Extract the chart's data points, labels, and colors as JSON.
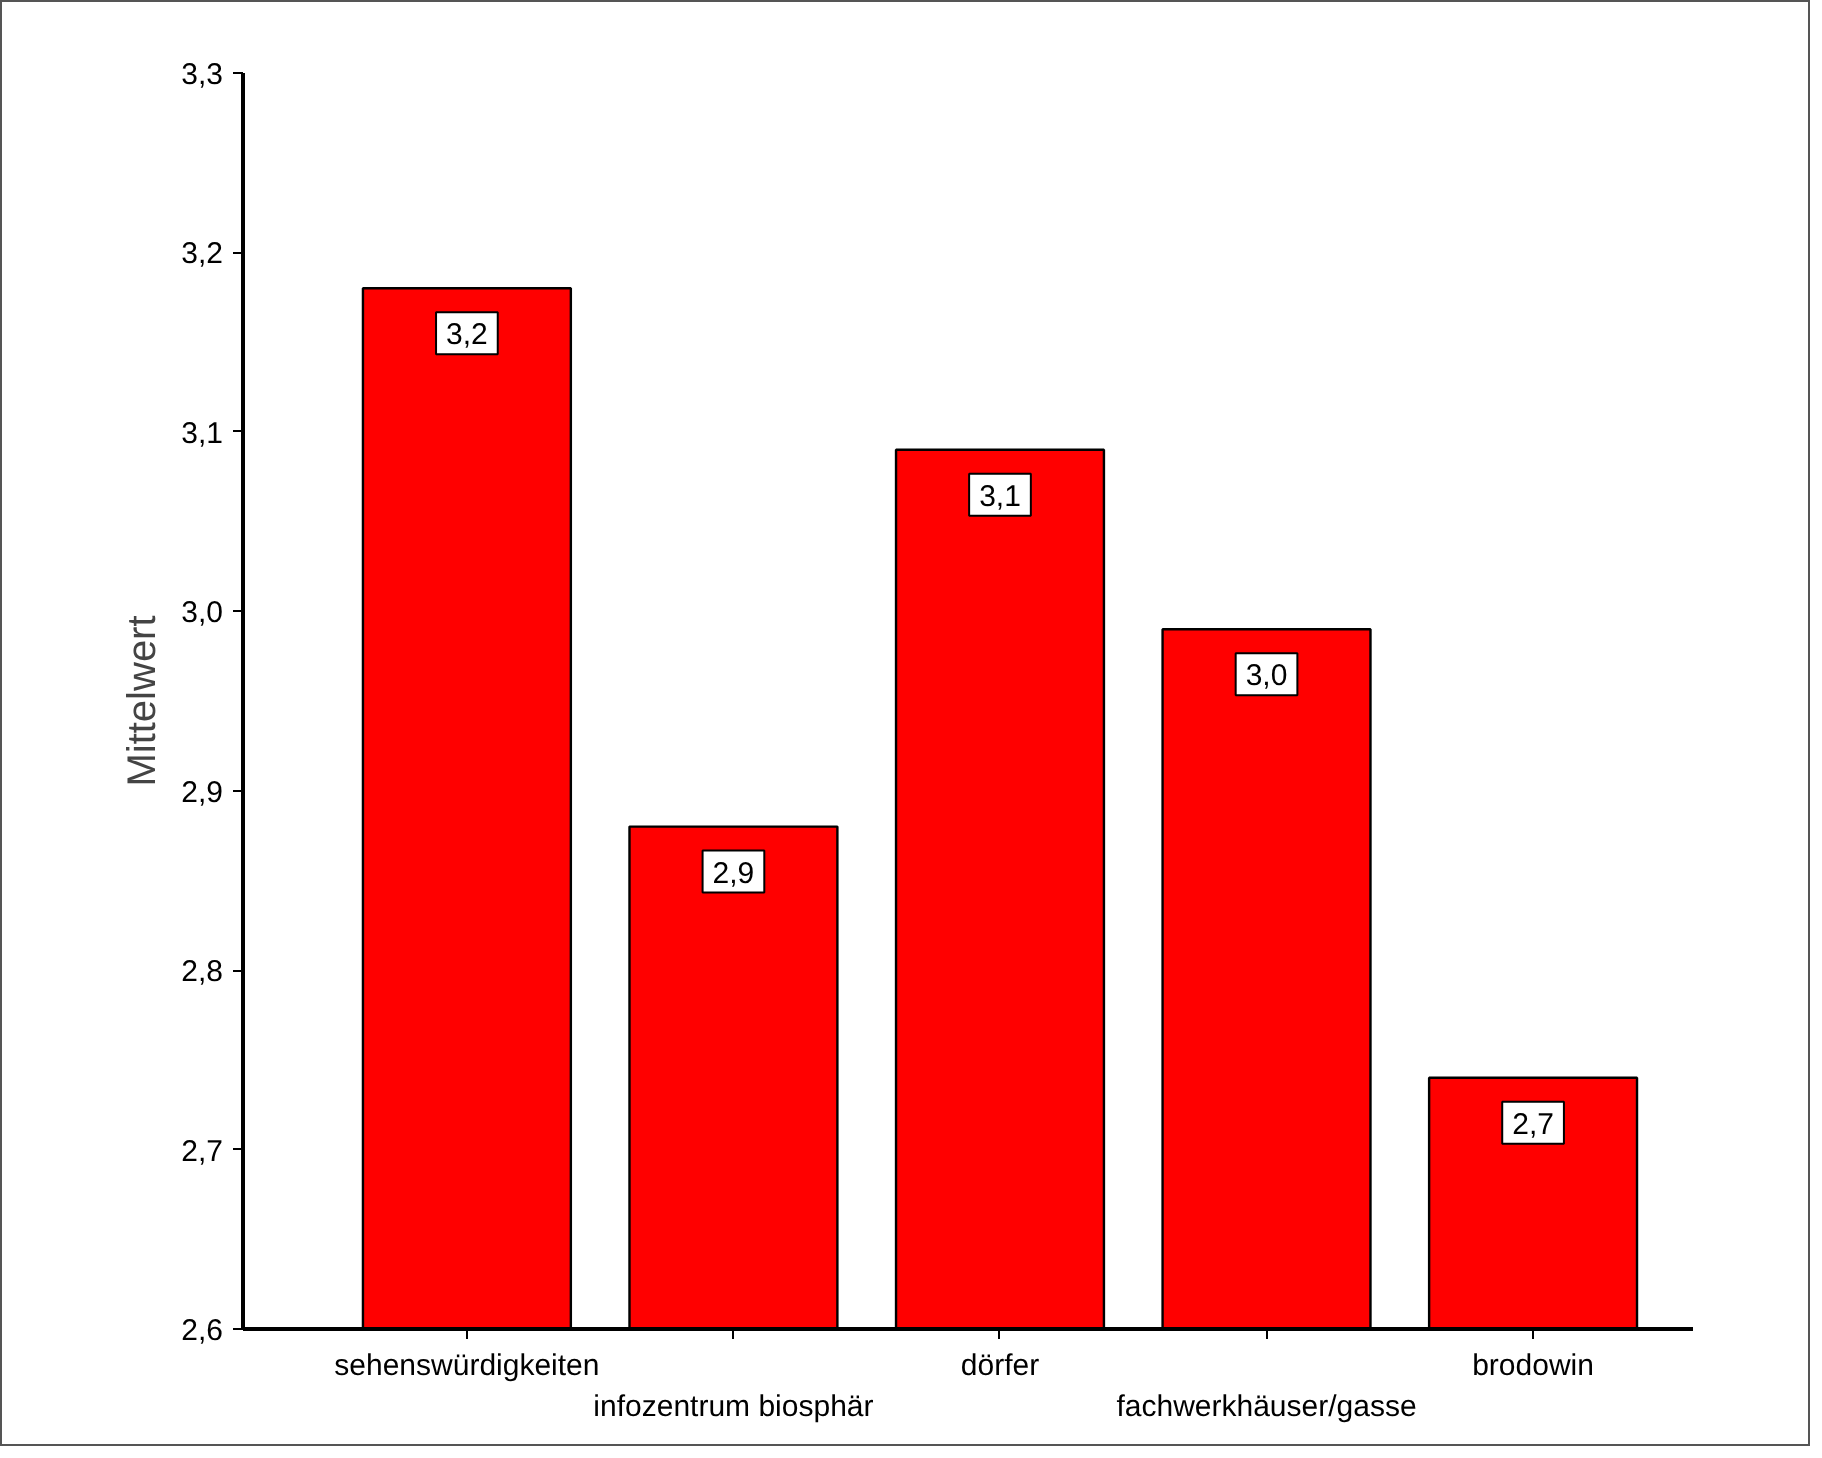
{
  "chart_data": {
    "type": "bar",
    "ylabel": "Mittelwert",
    "categories": [
      "sehenswürdigkeiten",
      "infozentrum biosphär",
      "dörfer",
      "fachwerkhäuser/gasse",
      "brodowin"
    ],
    "values": [
      3.18,
      2.88,
      3.09,
      2.99,
      2.74
    ],
    "value_labels": [
      "3,2",
      "2,9",
      "3,1",
      "3,0",
      "2,7"
    ],
    "color": "#ff0000",
    "ylim": [
      2.6,
      3.3
    ],
    "yticks": [
      {
        "value": 2.6,
        "label": "2,6"
      },
      {
        "value": 2.7,
        "label": "2,7"
      },
      {
        "value": 2.8,
        "label": "2,8"
      },
      {
        "value": 2.9,
        "label": "2,9"
      },
      {
        "value": 3.0,
        "label": "3,0"
      },
      {
        "value": 3.1,
        "label": "3,1"
      },
      {
        "value": 3.2,
        "label": "3,2"
      },
      {
        "value": 3.3,
        "label": "3,3"
      }
    ],
    "grid": false
  }
}
